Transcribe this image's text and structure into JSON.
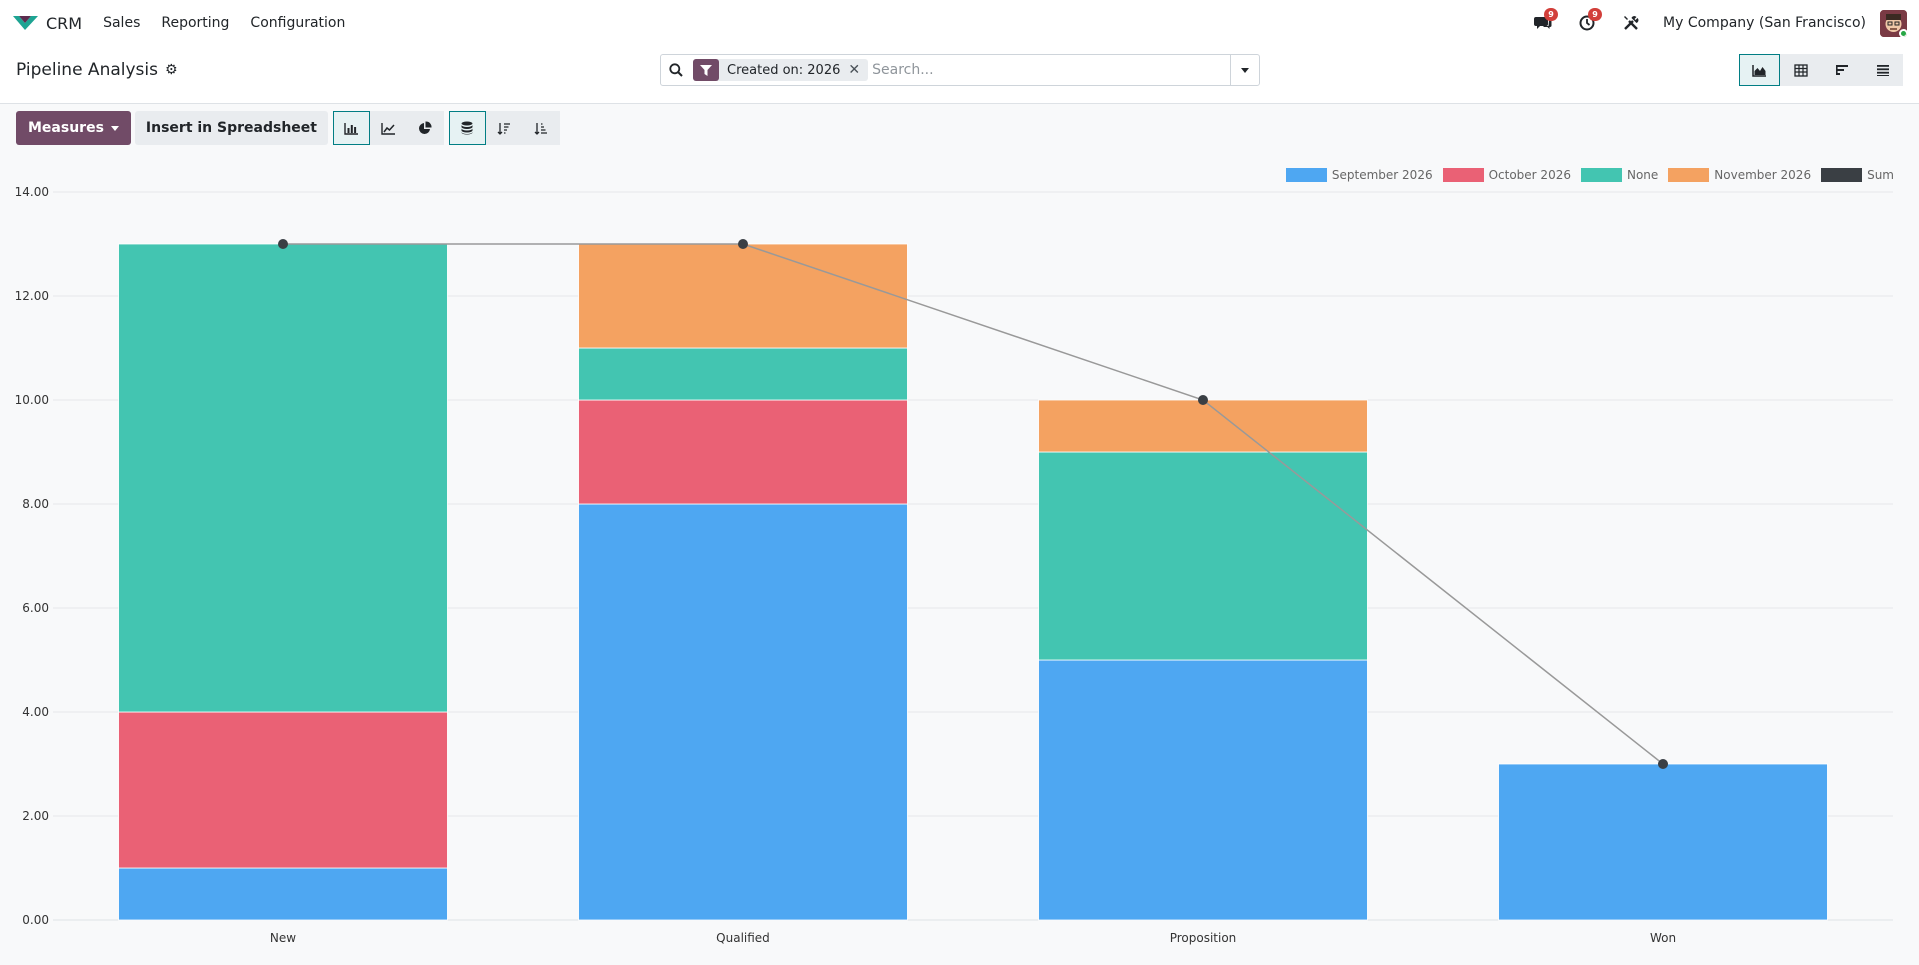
{
  "nav": {
    "app_name": "CRM",
    "menu": [
      "Sales",
      "Reporting",
      "Configuration"
    ],
    "messages_count": "9",
    "activities_count": "9",
    "company": "My Company (San Francisco)"
  },
  "control": {
    "title": "Pipeline Analysis",
    "facet_label": "Created on: 2026",
    "search_placeholder": "Search..."
  },
  "toolbar": {
    "measures_label": "Measures",
    "insert_label": "Insert in Spreadsheet"
  },
  "colors": {
    "September 2026": "#4ea7f2",
    "October 2026": "#ea6175",
    "None": "#43c5b1",
    "November 2026": "#f4a261",
    "Sum": "#3a3f44",
    "brand": "#714b67",
    "active": "#017e84"
  },
  "chart_data": {
    "type": "bar",
    "stacked": true,
    "categories": [
      "New",
      "Qualified",
      "Proposition",
      "Won"
    ],
    "series": [
      {
        "name": "September 2026",
        "values": [
          1,
          8,
          5,
          3
        ]
      },
      {
        "name": "October 2026",
        "values": [
          3,
          2,
          0,
          0
        ]
      },
      {
        "name": "None",
        "values": [
          9,
          1,
          4,
          0
        ]
      },
      {
        "name": "November 2026",
        "values": [
          0,
          2,
          1,
          0
        ]
      }
    ],
    "sum_line": {
      "name": "Sum",
      "values": [
        13,
        13,
        10,
        3
      ]
    },
    "ylim": [
      0,
      14
    ],
    "yticks": [
      "0.00",
      "2.00",
      "4.00",
      "6.00",
      "8.00",
      "10.00",
      "12.00",
      "14.00"
    ],
    "legend": "top-right",
    "grid": true
  }
}
